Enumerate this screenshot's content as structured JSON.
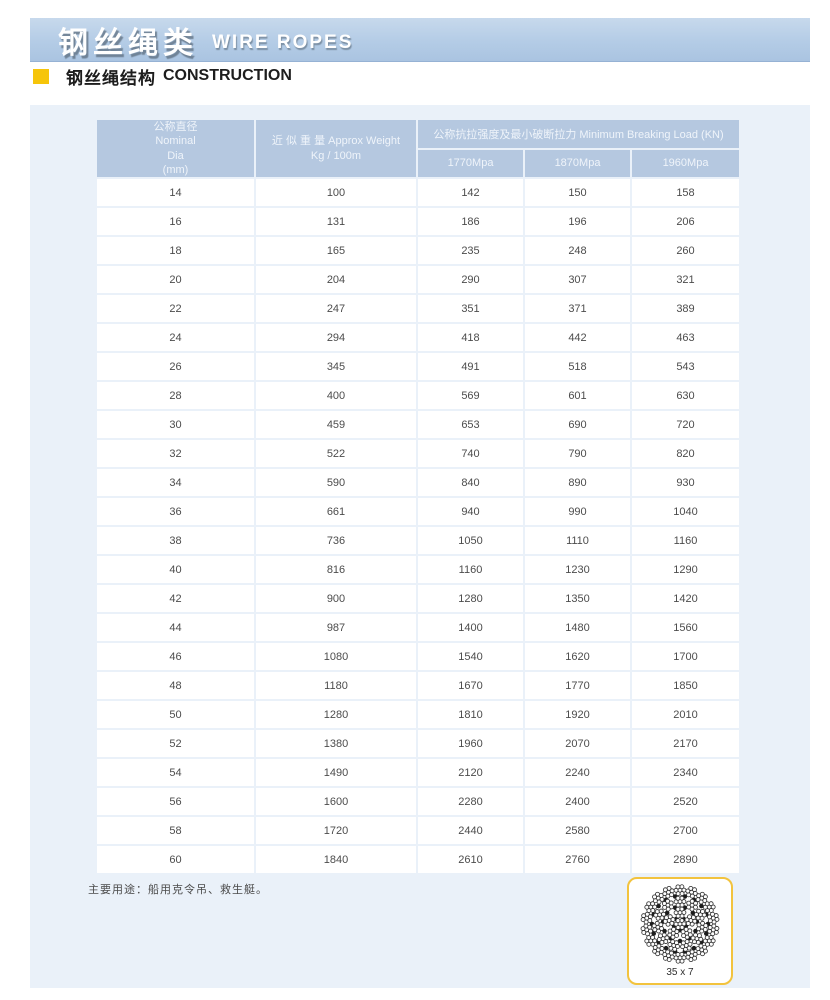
{
  "banner": {
    "title_zh": "钢丝绳类",
    "title_en": "WIRE ROPES"
  },
  "section": {
    "title_zh": "钢丝绳结构",
    "title_en": "CONSTRUCTION"
  },
  "table": {
    "header": {
      "col1_lines": [
        "公称直径",
        "Nominal",
        "Dia",
        "(mm)"
      ],
      "col2_lines": [
        "近 似 重 量 Approx Weight",
        "Kg / 100m"
      ],
      "group": "公称抗拉强度及最小破断拉力 Minimum Breaking Load (KN)",
      "subcols": [
        "1770Mpa",
        "1870Mpa",
        "1960Mpa"
      ]
    },
    "rows": [
      [
        14,
        100,
        142,
        150,
        158
      ],
      [
        16,
        131,
        186,
        196,
        206
      ],
      [
        18,
        165,
        235,
        248,
        260
      ],
      [
        20,
        204,
        290,
        307,
        321
      ],
      [
        22,
        247,
        351,
        371,
        389
      ],
      [
        24,
        294,
        418,
        442,
        463
      ],
      [
        26,
        345,
        491,
        518,
        543
      ],
      [
        28,
        400,
        569,
        601,
        630
      ],
      [
        30,
        459,
        653,
        690,
        720
      ],
      [
        32,
        522,
        740,
        790,
        820
      ],
      [
        34,
        590,
        840,
        890,
        930
      ],
      [
        36,
        661,
        940,
        990,
        1040
      ],
      [
        38,
        736,
        1050,
        1110,
        1160
      ],
      [
        40,
        816,
        1160,
        1230,
        1290
      ],
      [
        42,
        900,
        1280,
        1350,
        1420
      ],
      [
        44,
        987,
        1400,
        1480,
        1560
      ],
      [
        46,
        1080,
        1540,
        1620,
        1700
      ],
      [
        48,
        1180,
        1670,
        1770,
        1850
      ],
      [
        50,
        1280,
        1810,
        1920,
        2010
      ],
      [
        52,
        1380,
        1960,
        2070,
        2170
      ],
      [
        54,
        1490,
        2120,
        2240,
        2340
      ],
      [
        56,
        1600,
        2280,
        2400,
        2520
      ],
      [
        58,
        1720,
        2440,
        2580,
        2700
      ],
      [
        60,
        1840,
        2610,
        2760,
        2890
      ]
    ]
  },
  "note": "主要用途：船用克令吊、救生艇。",
  "rope": {
    "label": "35 x 7"
  },
  "colors": {
    "banner_bg": "#b4cce6",
    "panel_bg": "#eaf1f9",
    "header_cell_bg": "#b5c8e0",
    "accent_yellow": "#f6c50a",
    "rope_box_border": "#f2c33e"
  }
}
